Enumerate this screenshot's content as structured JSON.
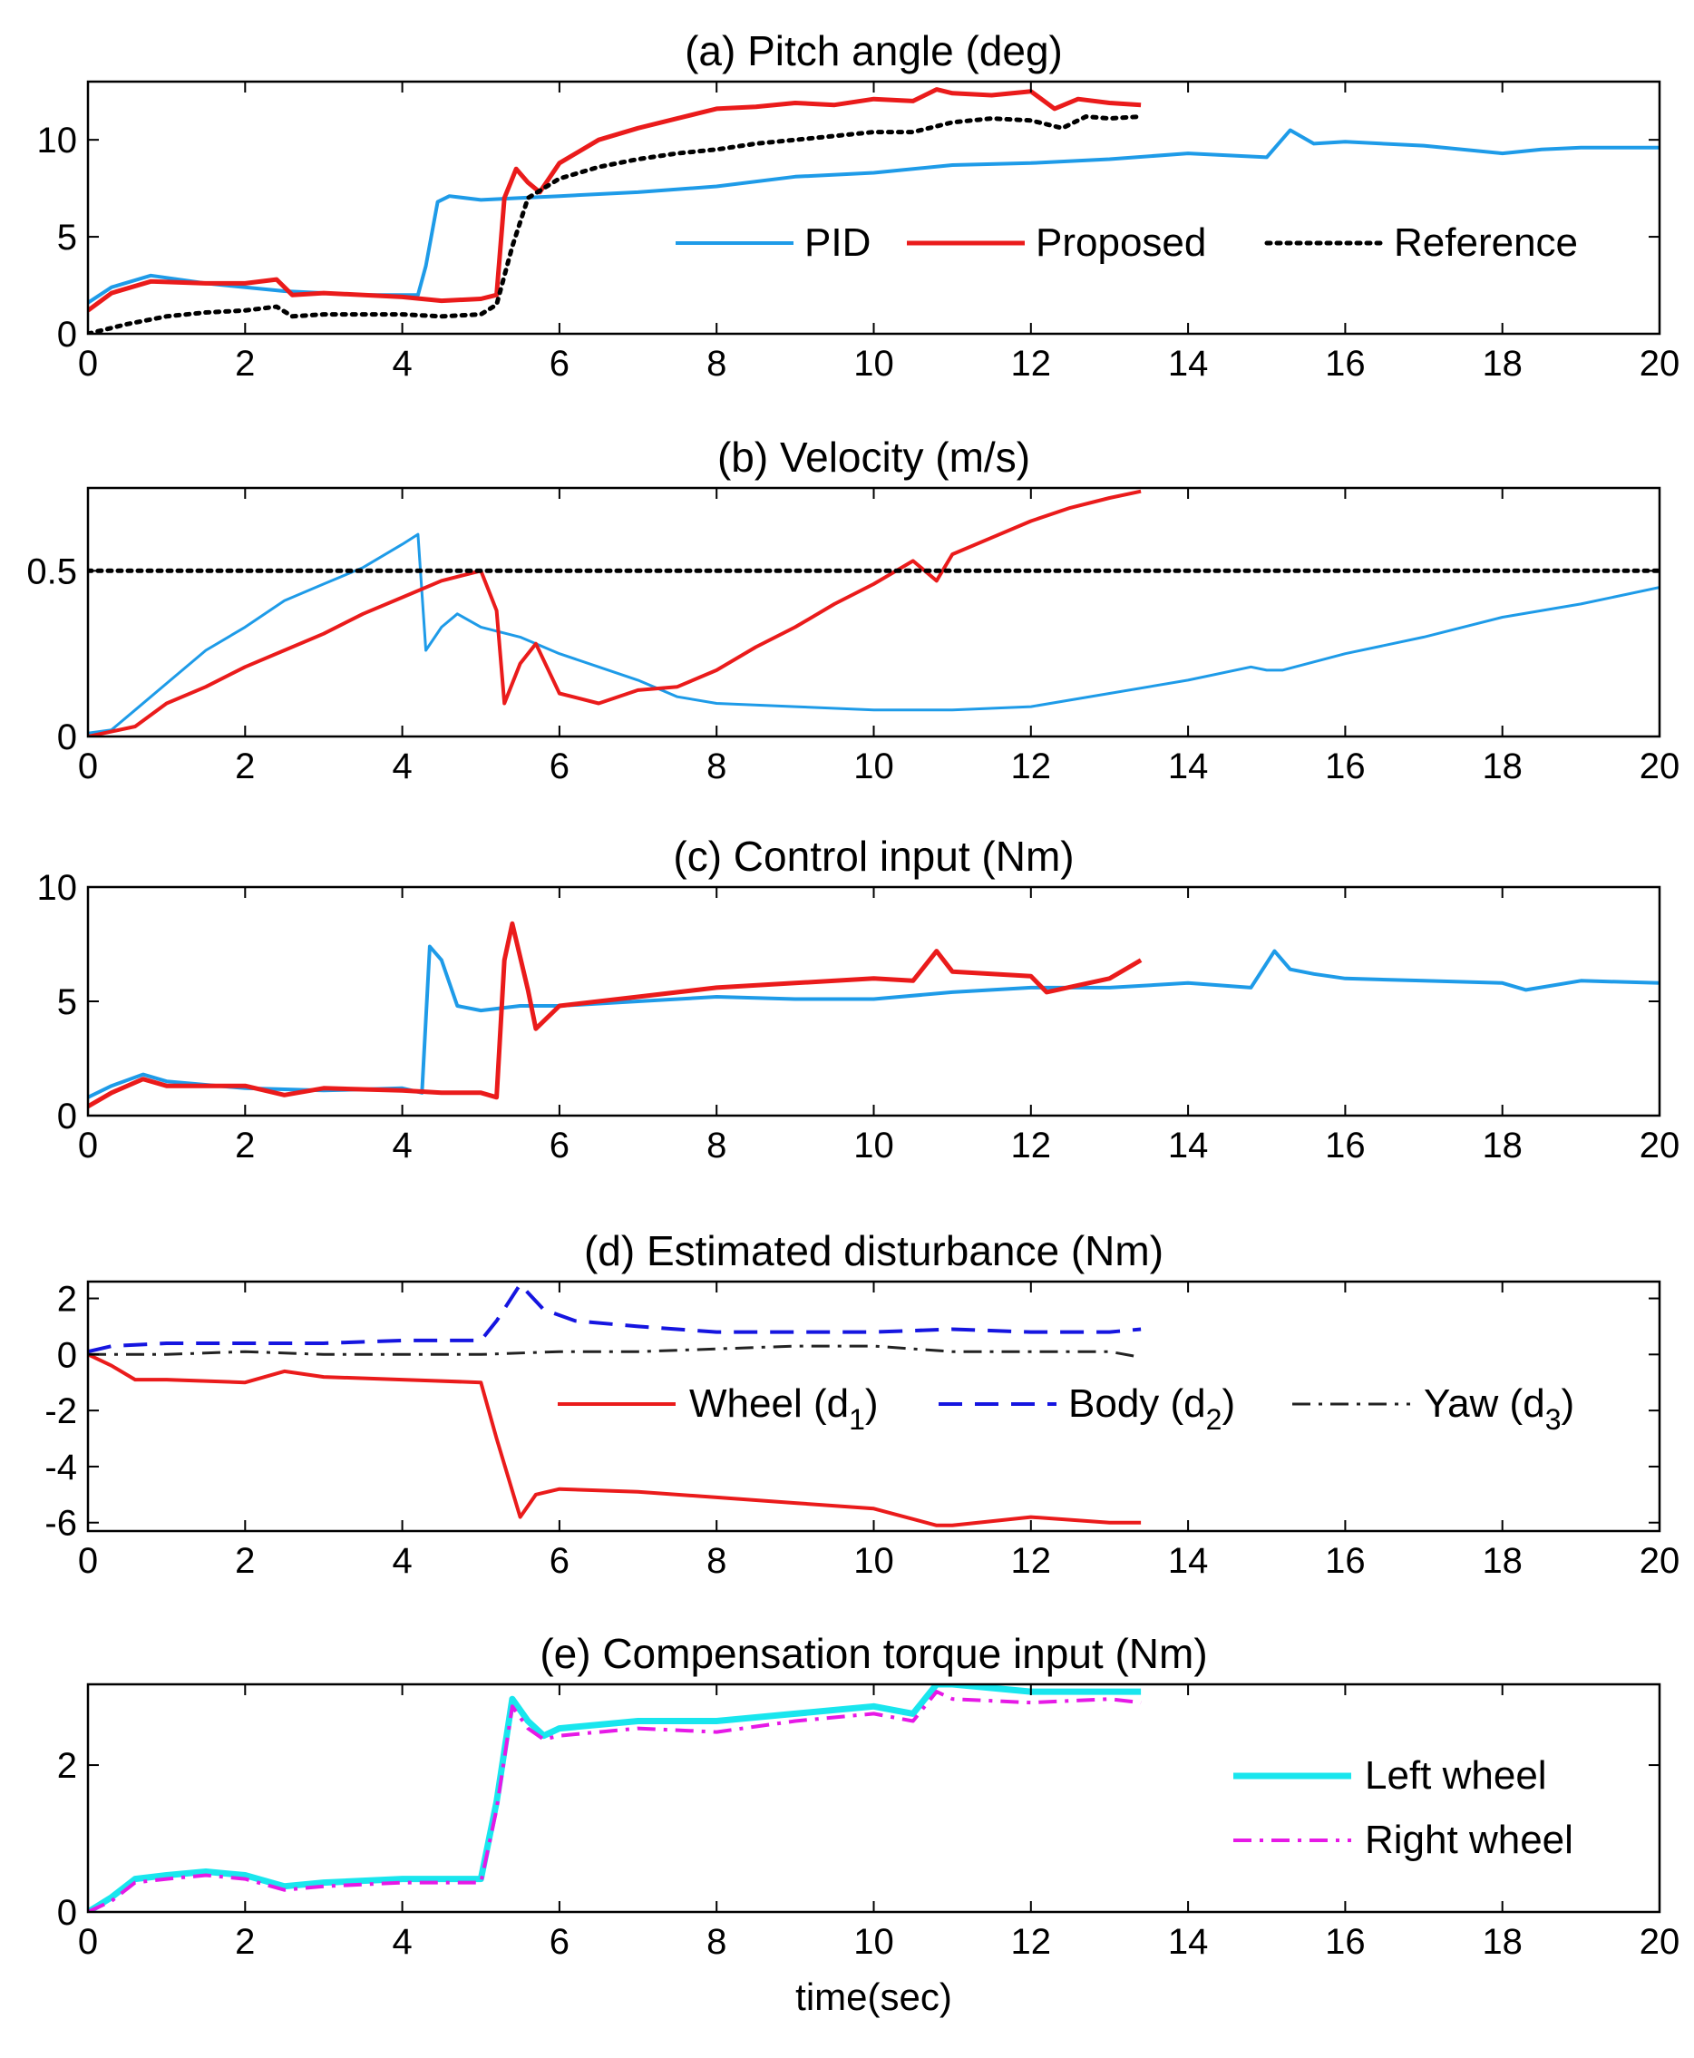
{
  "chart_data": [
    {
      "type": "line",
      "title": "(a) Pitch angle (deg)",
      "xlabel": "",
      "ylabel": "",
      "xlim": [
        0,
        20
      ],
      "ylim": [
        0,
        13
      ],
      "xticks": [
        0,
        2,
        4,
        6,
        8,
        10,
        12,
        14,
        16,
        18,
        20
      ],
      "yticks": [
        0,
        5,
        10
      ],
      "legend_location": "lower-right",
      "legend_layout": "horizontal",
      "series": [
        {
          "name": "PID",
          "color": "#1e9be8",
          "style": "solid",
          "width": 4,
          "x": [
            0,
            0.3,
            0.8,
            1.5,
            2.5,
            3.5,
            4.2,
            4.3,
            4.45,
            4.6,
            5.0,
            5.5,
            6.0,
            7.0,
            8.0,
            9.0,
            10.0,
            11.0,
            12.0,
            13.0,
            14.0,
            15.0,
            15.3,
            15.6,
            16.0,
            17.0,
            18.0,
            18.5,
            19.0,
            20.0
          ],
          "y": [
            1.6,
            2.4,
            3.0,
            2.6,
            2.2,
            2.0,
            2.0,
            3.5,
            6.8,
            7.1,
            6.9,
            7.0,
            7.1,
            7.3,
            7.6,
            8.1,
            8.3,
            8.7,
            8.8,
            9.0,
            9.3,
            9.1,
            10.5,
            9.8,
            9.9,
            9.7,
            9.3,
            9.5,
            9.6,
            9.6
          ]
        },
        {
          "name": "Proposed",
          "color": "#ea1b1b",
          "style": "solid",
          "width": 5,
          "x": [
            0,
            0.3,
            0.8,
            1.5,
            2.0,
            2.4,
            2.6,
            3.0,
            4.0,
            4.5,
            5.0,
            5.2,
            5.3,
            5.45,
            5.6,
            5.75,
            6.0,
            6.5,
            7.0,
            7.5,
            8.0,
            8.5,
            9.0,
            9.5,
            10.0,
            10.5,
            10.8,
            11.0,
            11.5,
            12.0,
            12.3,
            12.6,
            13.0,
            13.4
          ],
          "y": [
            1.2,
            2.1,
            2.7,
            2.6,
            2.6,
            2.8,
            2.0,
            2.1,
            1.9,
            1.7,
            1.8,
            2.0,
            7.0,
            8.5,
            7.8,
            7.3,
            8.8,
            10.0,
            10.6,
            11.1,
            11.6,
            11.7,
            11.9,
            11.8,
            12.1,
            12.0,
            12.6,
            12.4,
            12.3,
            12.5,
            11.6,
            12.1,
            11.9,
            11.8
          ]
        },
        {
          "name": "Reference",
          "color": "#000000",
          "style": "dotted",
          "width": 5,
          "x": [
            0,
            0.5,
            1.0,
            1.5,
            2.0,
            2.4,
            2.6,
            3.0,
            4.0,
            4.5,
            5.0,
            5.2,
            5.4,
            5.6,
            6.0,
            6.5,
            7.0,
            7.5,
            8.0,
            8.5,
            9.0,
            10.0,
            10.5,
            11.0,
            11.5,
            12.0,
            12.4,
            12.7,
            13.0,
            13.4
          ],
          "y": [
            0.0,
            0.5,
            0.9,
            1.1,
            1.2,
            1.4,
            0.9,
            1.0,
            1.0,
            0.9,
            1.0,
            1.5,
            4.5,
            7.0,
            8.0,
            8.6,
            9.0,
            9.3,
            9.5,
            9.8,
            10.0,
            10.4,
            10.4,
            10.9,
            11.1,
            11.0,
            10.6,
            11.2,
            11.1,
            11.2
          ]
        }
      ]
    },
    {
      "type": "line",
      "title": "(b) Velocity (m/s)",
      "xlabel": "",
      "ylabel": "",
      "xlim": [
        0,
        20
      ],
      "ylim": [
        0,
        0.75
      ],
      "xticks": [
        0,
        2,
        4,
        6,
        8,
        10,
        12,
        14,
        16,
        18,
        20
      ],
      "yticks": [
        0,
        0.5
      ],
      "series": [
        {
          "name": "PID",
          "color": "#1e9be8",
          "style": "solid",
          "width": 3,
          "x": [
            0,
            0.3,
            0.6,
            1.0,
            1.5,
            2.0,
            2.5,
            3.0,
            3.5,
            4.0,
            4.2,
            4.3,
            4.5,
            4.7,
            5.0,
            5.5,
            6.0,
            6.5,
            7.0,
            7.5,
            8.0,
            9.0,
            10.0,
            11.0,
            12.0,
            13.0,
            14.0,
            14.8,
            15.0,
            15.2,
            16.0,
            17.0,
            18.0,
            19.0,
            20.0
          ],
          "y": [
            0.01,
            0.02,
            0.08,
            0.16,
            0.26,
            0.33,
            0.41,
            0.46,
            0.51,
            0.58,
            0.61,
            0.26,
            0.33,
            0.37,
            0.33,
            0.3,
            0.25,
            0.21,
            0.17,
            0.12,
            0.1,
            0.09,
            0.08,
            0.08,
            0.09,
            0.13,
            0.17,
            0.21,
            0.2,
            0.2,
            0.25,
            0.3,
            0.36,
            0.4,
            0.45
          ]
        },
        {
          "name": "Proposed",
          "color": "#ea1b1b",
          "style": "solid",
          "width": 4,
          "x": [
            0,
            0.6,
            1.0,
            1.5,
            2.0,
            2.5,
            3.0,
            3.5,
            4.0,
            4.5,
            5.0,
            5.2,
            5.3,
            5.5,
            5.7,
            6.0,
            6.5,
            7.0,
            7.5,
            8.0,
            8.5,
            9.0,
            9.5,
            10.0,
            10.5,
            10.8,
            11.0,
            11.5,
            12.0,
            12.5,
            13.0,
            13.4
          ],
          "y": [
            0.0,
            0.03,
            0.1,
            0.15,
            0.21,
            0.26,
            0.31,
            0.37,
            0.42,
            0.47,
            0.5,
            0.38,
            0.1,
            0.22,
            0.28,
            0.13,
            0.1,
            0.14,
            0.15,
            0.2,
            0.27,
            0.33,
            0.4,
            0.46,
            0.53,
            0.47,
            0.55,
            0.6,
            0.65,
            0.69,
            0.72,
            0.74
          ]
        },
        {
          "name": "Reference",
          "color": "#000000",
          "style": "dotted",
          "width": 5,
          "x": [
            0,
            20
          ],
          "y": [
            0.5,
            0.5
          ]
        }
      ]
    },
    {
      "type": "line",
      "title": "(c) Control input (Nm)",
      "xlabel": "",
      "ylabel": "",
      "xlim": [
        0,
        20
      ],
      "ylim": [
        0,
        10
      ],
      "xticks": [
        0,
        2,
        4,
        6,
        8,
        10,
        12,
        14,
        16,
        18,
        20
      ],
      "yticks": [
        0,
        5,
        10
      ],
      "series": [
        {
          "name": "PID",
          "color": "#1e9be8",
          "style": "solid",
          "width": 4,
          "x": [
            0,
            0.3,
            0.7,
            1.0,
            2.0,
            3.0,
            4.0,
            4.25,
            4.35,
            4.5,
            4.7,
            5.0,
            5.5,
            6.0,
            7.0,
            8.0,
            9.0,
            10.0,
            11.0,
            12.0,
            13.0,
            14.0,
            14.8,
            15.1,
            15.3,
            15.6,
            16.0,
            17.0,
            18.0,
            18.3,
            19.0,
            20.0
          ],
          "y": [
            0.8,
            1.3,
            1.8,
            1.5,
            1.2,
            1.1,
            1.2,
            1.0,
            7.4,
            6.8,
            4.8,
            4.6,
            4.8,
            4.8,
            5.0,
            5.2,
            5.1,
            5.1,
            5.4,
            5.6,
            5.6,
            5.8,
            5.6,
            7.2,
            6.4,
            6.2,
            6.0,
            5.9,
            5.8,
            5.5,
            5.9,
            5.8
          ]
        },
        {
          "name": "Proposed",
          "color": "#ea1b1b",
          "style": "solid",
          "width": 5,
          "x": [
            0,
            0.3,
            0.7,
            1.0,
            2.0,
            2.5,
            3.0,
            4.0,
            4.5,
            5.0,
            5.2,
            5.3,
            5.4,
            5.6,
            5.7,
            6.0,
            7.0,
            8.0,
            9.0,
            10.0,
            10.5,
            10.8,
            11.0,
            12.0,
            12.2,
            13.0,
            13.4
          ],
          "y": [
            0.4,
            1.0,
            1.6,
            1.3,
            1.3,
            0.9,
            1.2,
            1.1,
            1.0,
            1.0,
            0.8,
            6.8,
            8.4,
            5.5,
            3.8,
            4.8,
            5.2,
            5.6,
            5.8,
            6.0,
            5.9,
            7.2,
            6.3,
            6.1,
            5.4,
            6.0,
            6.8
          ]
        }
      ]
    },
    {
      "type": "line",
      "title": "(d) Estimated disturbance (Nm)",
      "xlabel": "",
      "ylabel": "",
      "xlim": [
        0,
        20
      ],
      "ylim": [
        -6.3,
        2.6
      ],
      "xticks": [
        0,
        2,
        4,
        6,
        8,
        10,
        12,
        14,
        16,
        18,
        20
      ],
      "yticks": [
        -6,
        -4,
        -2,
        0,
        2
      ],
      "legend_location": "middle-right",
      "legend_layout": "horizontal",
      "series": [
        {
          "name": "Wheel (d1)",
          "legend_main": "Wheel (d",
          "legend_sub": "1",
          "color": "#ea1b1b",
          "style": "solid",
          "width": 4,
          "x": [
            0,
            0.3,
            0.6,
            1.0,
            2.0,
            2.5,
            3.0,
            4.0,
            5.0,
            5.2,
            5.5,
            5.7,
            6.0,
            7.0,
            8.0,
            9.0,
            10.0,
            10.8,
            11.0,
            12.0,
            13.0,
            13.4
          ],
          "y": [
            0.0,
            -0.4,
            -0.9,
            -0.9,
            -1.0,
            -0.6,
            -0.8,
            -0.9,
            -1.0,
            -3.0,
            -5.8,
            -5.0,
            -4.8,
            -4.9,
            -5.1,
            -5.3,
            -5.5,
            -6.1,
            -6.1,
            -5.8,
            -6.0,
            -6.0
          ]
        },
        {
          "name": "Body (d2)",
          "legend_main": "Body (d",
          "legend_sub": "2",
          "color": "#1515e0",
          "style": "dashed",
          "width": 4,
          "x": [
            0,
            0.3,
            1.0,
            2.0,
            3.0,
            4.0,
            5.0,
            5.2,
            5.5,
            5.8,
            6.2,
            7.0,
            8.0,
            9.0,
            10.0,
            11.0,
            12.0,
            13.0,
            13.4
          ],
          "y": [
            0.1,
            0.3,
            0.4,
            0.4,
            0.4,
            0.5,
            0.5,
            1.2,
            2.5,
            1.6,
            1.2,
            1.0,
            0.8,
            0.8,
            0.8,
            0.9,
            0.8,
            0.8,
            0.9
          ]
        },
        {
          "name": "Yaw (d3)",
          "legend_main": "Yaw (d",
          "legend_sub": "3",
          "color": "#222222",
          "style": "dashdot",
          "width": 3,
          "x": [
            0,
            1.0,
            2.0,
            3.0,
            4.0,
            5.0,
            6.0,
            7.0,
            8.0,
            9.0,
            10.0,
            11.0,
            12.0,
            13.0,
            13.4
          ],
          "y": [
            0.0,
            0.0,
            0.1,
            0.0,
            0.0,
            0.0,
            0.1,
            0.1,
            0.2,
            0.3,
            0.3,
            0.1,
            0.1,
            0.1,
            -0.1
          ]
        }
      ]
    },
    {
      "type": "line",
      "title": "(e) Compensation torque input (Nm)",
      "xlabel": "time(sec)",
      "ylabel": "",
      "xlim": [
        0,
        20
      ],
      "ylim": [
        0,
        3.1
      ],
      "xticks": [
        0,
        2,
        4,
        6,
        8,
        10,
        12,
        14,
        16,
        18,
        20
      ],
      "yticks": [
        0,
        2
      ],
      "legend_location": "lower-right",
      "legend_layout": "vertical",
      "series": [
        {
          "name": "Left wheel",
          "color": "#19e6ee",
          "style": "solid",
          "width": 7,
          "x": [
            0,
            0.3,
            0.6,
            1.0,
            1.5,
            2.0,
            2.5,
            3.0,
            4.0,
            5.0,
            5.2,
            5.4,
            5.6,
            5.8,
            6.0,
            7.0,
            8.0,
            9.0,
            10.0,
            10.5,
            10.8,
            11.0,
            12.0,
            13.0,
            13.4
          ],
          "y": [
            0.0,
            0.2,
            0.45,
            0.5,
            0.55,
            0.5,
            0.35,
            0.4,
            0.45,
            0.45,
            1.5,
            2.9,
            2.6,
            2.4,
            2.5,
            2.6,
            2.6,
            2.7,
            2.8,
            2.7,
            3.1,
            3.1,
            3.0,
            3.0,
            3.0
          ]
        },
        {
          "name": "Right wheel",
          "color": "#e619e6",
          "style": "dashdot",
          "width": 4,
          "x": [
            0,
            0.3,
            0.6,
            1.0,
            1.5,
            2.0,
            2.5,
            3.0,
            4.0,
            5.0,
            5.2,
            5.4,
            5.6,
            5.8,
            6.0,
            7.0,
            8.0,
            9.0,
            10.0,
            10.5,
            10.8,
            11.0,
            12.0,
            13.0,
            13.4
          ],
          "y": [
            0.0,
            0.15,
            0.4,
            0.45,
            0.5,
            0.45,
            0.3,
            0.35,
            0.4,
            0.4,
            1.4,
            2.8,
            2.5,
            2.35,
            2.4,
            2.5,
            2.45,
            2.6,
            2.7,
            2.6,
            3.0,
            2.9,
            2.85,
            2.9,
            2.85
          ]
        }
      ]
    }
  ]
}
